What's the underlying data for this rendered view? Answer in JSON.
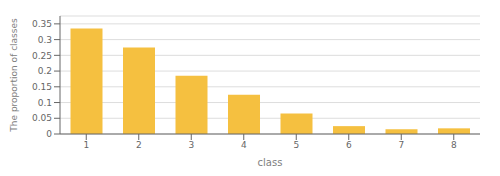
{
  "chart_data": {
    "type": "bar",
    "categories": [
      "1",
      "2",
      "3",
      "4",
      "5",
      "6",
      "7",
      "8"
    ],
    "values": [
      0.335,
      0.275,
      0.185,
      0.125,
      0.065,
      0.025,
      0.015,
      0.018
    ],
    "color": "#F5C040",
    "xlabel": "class",
    "ylabel": "The proportion of classes",
    "ylim": [
      0,
      0.375
    ],
    "yticks": [
      0,
      0.05,
      0.1,
      0.15,
      0.2,
      0.25,
      0.3,
      0.35
    ],
    "grid": true
  }
}
